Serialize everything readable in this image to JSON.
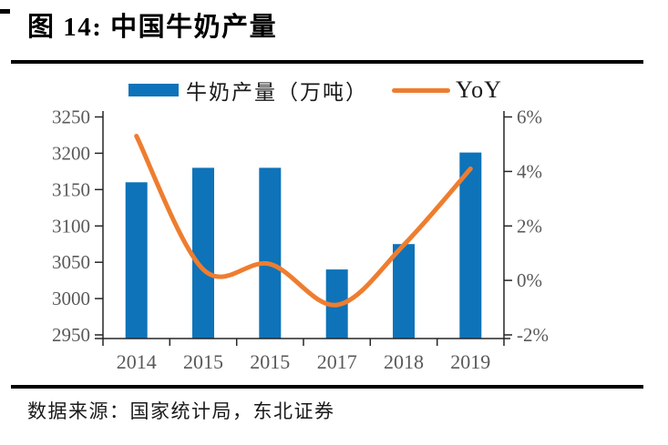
{
  "header": {
    "title": "图 14:  中国牛奶产量"
  },
  "footer": {
    "source": "数据来源：国家统计局，东北证券"
  },
  "legend": {
    "bar_label": "牛奶产量（万吨）",
    "line_label": "YoY"
  },
  "colors": {
    "bar": "#0E73B9",
    "line": "#EE7D2F",
    "axis": "#262626",
    "tick_label": "#595959",
    "rule": "#000000"
  },
  "chart_data": {
    "type": "bar",
    "title": "中国牛奶产量",
    "categories": [
      "2014",
      "2015",
      "2015",
      "2017",
      "2018",
      "2019"
    ],
    "series": [
      {
        "name": "牛奶产量（万吨）",
        "type": "bar",
        "axis": "left",
        "values": [
          3160,
          3180,
          3180,
          3040,
          3075,
          3201
        ]
      },
      {
        "name": "YoY",
        "type": "line",
        "axis": "right",
        "unit": "%",
        "values": [
          5.3,
          0.4,
          0.6,
          -0.9,
          1.3,
          4.1
        ]
      }
    ],
    "left_axis": {
      "min": 2950,
      "max": 3250,
      "tick_values": [
        3250,
        3200,
        3150,
        3100,
        3050,
        3000,
        2950
      ],
      "tick_labels": [
        "3250",
        "3200",
        "3150",
        "3100",
        "3050",
        "3000",
        "2950"
      ]
    },
    "right_axis": {
      "min": -2,
      "max": 6,
      "tick_values": [
        6,
        4,
        2,
        0,
        -2
      ],
      "tick_labels": [
        "6%",
        "4%",
        "2%",
        "0%",
        "-2%"
      ]
    },
    "legend_position": "top",
    "grid": false,
    "line_smoothing": true
  }
}
